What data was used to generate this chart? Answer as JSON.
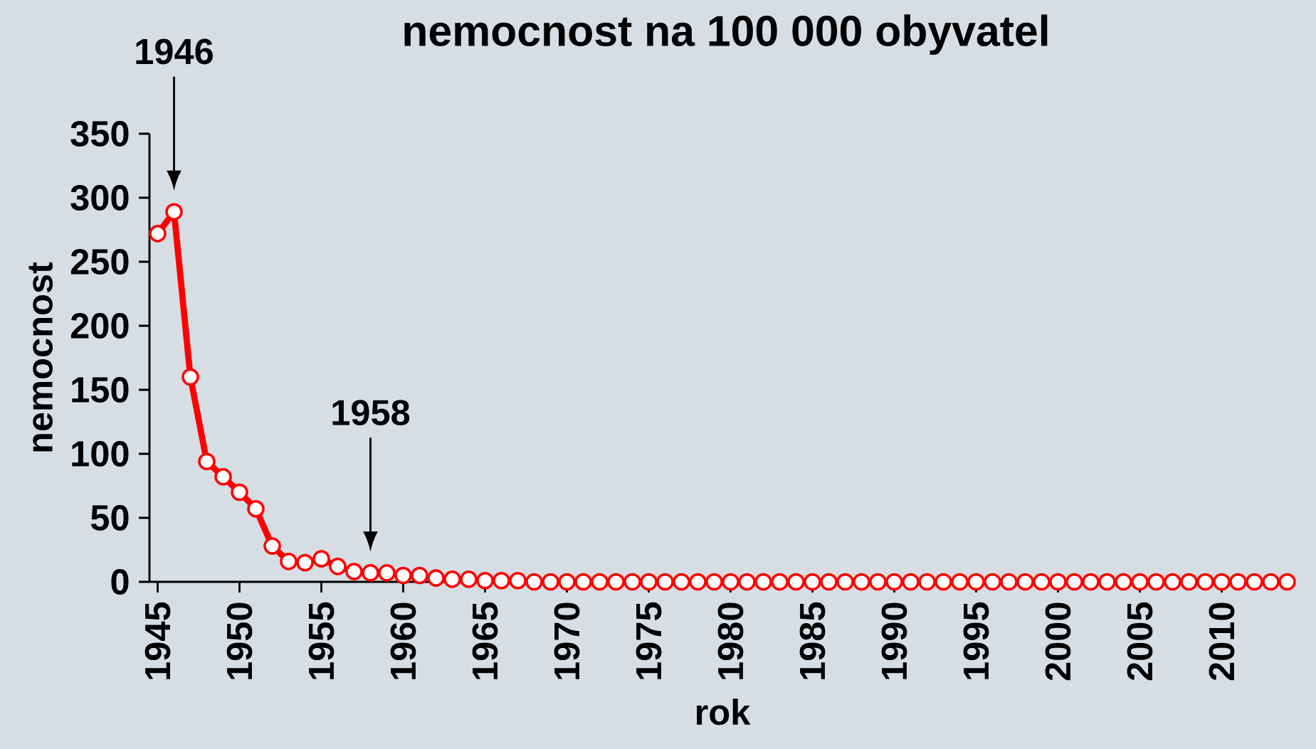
{
  "chart_data": {
    "type": "line",
    "title": "nemocnost na 100 000 obyvatel",
    "xlabel": "rok",
    "ylabel": "nemocnost",
    "x": [
      1945,
      1946,
      1947,
      1948,
      1949,
      1950,
      1951,
      1952,
      1953,
      1954,
      1955,
      1956,
      1957,
      1958,
      1959,
      1960,
      1961,
      1962,
      1963,
      1964,
      1965,
      1966,
      1967,
      1968,
      1969,
      1970,
      1971,
      1972,
      1973,
      1974,
      1975,
      1976,
      1977,
      1978,
      1979,
      1980,
      1981,
      1982,
      1983,
      1984,
      1985,
      1986,
      1987,
      1988,
      1989,
      1990,
      1991,
      1992,
      1993,
      1994,
      1995,
      1996,
      1997,
      1998,
      1999,
      2000,
      2001,
      2002,
      2003,
      2004,
      2005,
      2006,
      2007,
      2008,
      2009,
      2010,
      2011,
      2012,
      2013,
      2014
    ],
    "series": [
      {
        "color": "#ff0000",
        "values": [
          272,
          289,
          160,
          94,
          82,
          70,
          57,
          28,
          16,
          15,
          18,
          12,
          8,
          7,
          7,
          5,
          5,
          3,
          2,
          2,
          1,
          1,
          1,
          0,
          0,
          0,
          0,
          0,
          0,
          0,
          0,
          0,
          0,
          0,
          0,
          0,
          0,
          0,
          0,
          0,
          0,
          0,
          0,
          0,
          0,
          0,
          0,
          0,
          0,
          0,
          0,
          0,
          0,
          0,
          0,
          0,
          0,
          0,
          0,
          0,
          0,
          0,
          0,
          0,
          0,
          0,
          0,
          0,
          0,
          0
        ]
      }
    ],
    "xlim": [
      1944.5,
      2014.5
    ],
    "xticks": [
      1945,
      1950,
      1955,
      1960,
      1965,
      1970,
      1975,
      1980,
      1985,
      1990,
      1995,
      2000,
      2005,
      2010
    ],
    "ylim": [
      0,
      350
    ],
    "yticks": [
      0,
      50,
      100,
      150,
      200,
      250,
      300,
      350
    ],
    "annotations": [
      {
        "text": "1946",
        "x": 1946
      },
      {
        "text": "1958",
        "x": 1958
      }
    ],
    "grid": false,
    "marker": "circle",
    "line_style": "solid"
  }
}
